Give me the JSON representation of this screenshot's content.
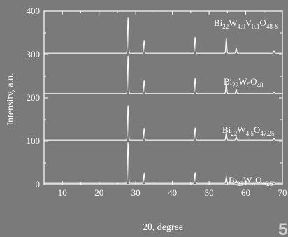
{
  "chart_data": {
    "type": "line",
    "xlabel": "2θ, degree",
    "ylabel": "Intensity, a.u.",
    "xlim": [
      5,
      70
    ],
    "ylim": [
      0,
      400
    ],
    "xticks": [
      10,
      20,
      30,
      40,
      50,
      60,
      70
    ],
    "yticks": [
      0,
      100,
      200,
      300,
      400
    ],
    "grid": false,
    "series": [
      {
        "name_parts": [
          [
            "Bi",
            ""
          ],
          [
            "23",
            "sub"
          ],
          [
            "W",
            ""
          ],
          [
            "4",
            "sub"
          ],
          [
            "O",
            ""
          ],
          [
            "46.5",
            "sub"
          ]
        ],
        "baseline": 3,
        "peaks": [
          [
            27.9,
            95
          ],
          [
            32.3,
            22
          ],
          [
            46.2,
            25
          ],
          [
            54.7,
            16
          ],
          [
            57.4,
            6
          ],
          [
            67.7,
            3
          ]
        ]
      },
      {
        "name_parts": [
          [
            "Bi",
            ""
          ],
          [
            "22",
            "sub"
          ],
          [
            "W",
            ""
          ],
          [
            "4.5",
            "sub"
          ],
          [
            "O",
            ""
          ],
          [
            "47.25",
            "sub"
          ]
        ],
        "baseline": 103,
        "peaks": [
          [
            27.9,
            80
          ],
          [
            32.3,
            27
          ],
          [
            46.2,
            28
          ],
          [
            54.7,
            18
          ],
          [
            57.4,
            7
          ],
          [
            67.7,
            3
          ]
        ]
      },
      {
        "name_parts": [
          [
            "Bi",
            ""
          ],
          [
            "22",
            "sub"
          ],
          [
            "W",
            ""
          ],
          [
            "5",
            "sub"
          ],
          [
            "O",
            ""
          ],
          [
            "48",
            "sub"
          ]
        ],
        "baseline": 210,
        "peaks": [
          [
            27.9,
            87
          ],
          [
            32.3,
            30
          ],
          [
            46.2,
            35
          ],
          [
            54.7,
            26
          ],
          [
            57.4,
            9
          ],
          [
            67.7,
            4
          ]
        ]
      },
      {
        "name_parts": [
          [
            "Bi",
            ""
          ],
          [
            "22",
            "sub"
          ],
          [
            "W",
            ""
          ],
          [
            "4.9",
            "sub"
          ],
          [
            "V",
            ""
          ],
          [
            "0.1",
            "sub"
          ],
          [
            "O",
            ""
          ],
          [
            "48-δ",
            "sub"
          ]
        ],
        "baseline": 303,
        "peaks": [
          [
            27.9,
            82
          ],
          [
            32.3,
            30
          ],
          [
            46.2,
            37
          ],
          [
            54.7,
            35
          ],
          [
            57.4,
            12
          ],
          [
            67.7,
            5
          ]
        ]
      }
    ],
    "corner_mark": "5"
  }
}
